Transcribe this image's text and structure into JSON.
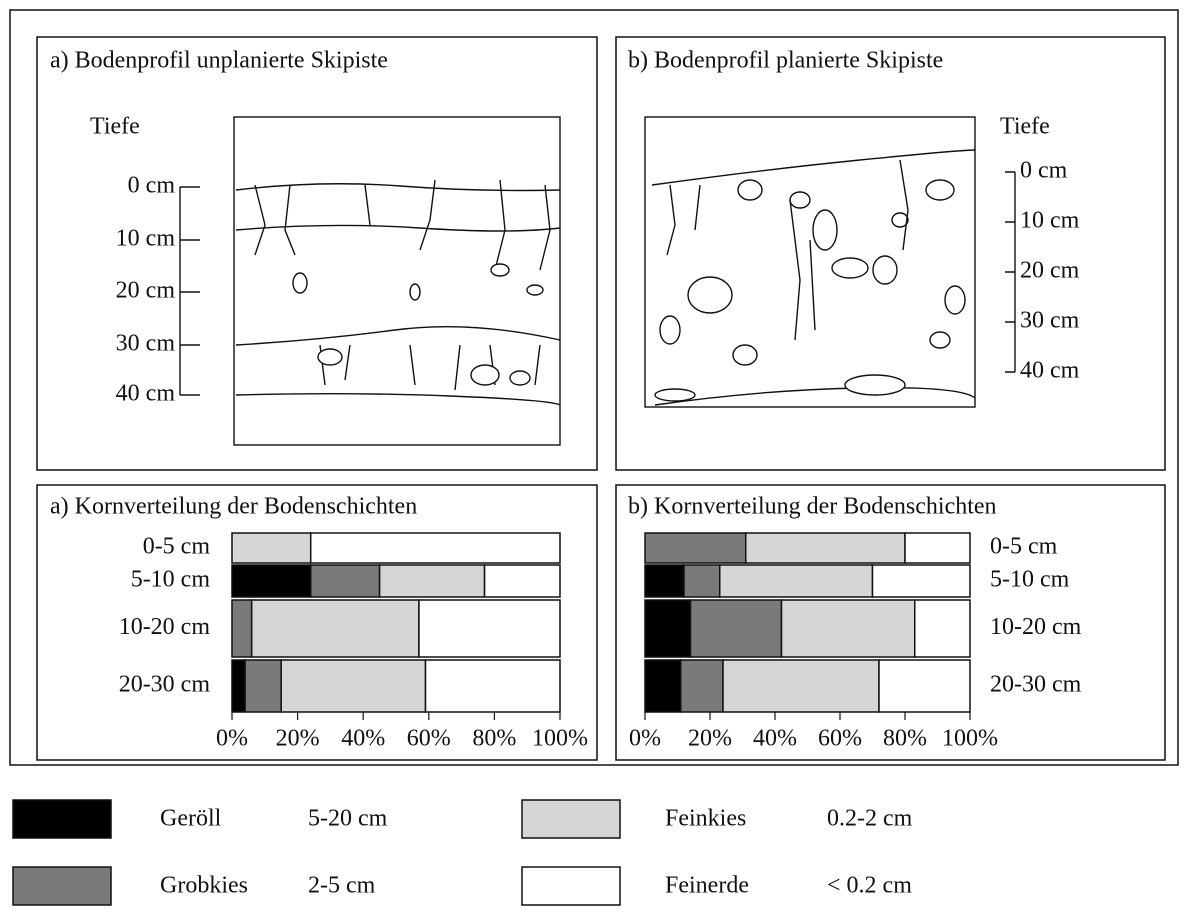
{
  "profiles": [
    {
      "title": "a) Bodenprofil unplanierte Skipiste",
      "depth_title": "Tiefe",
      "depth_labels": [
        "0 cm",
        "10 cm",
        "20 cm",
        "30 cm",
        "40 cm"
      ]
    },
    {
      "title": "b) Bodenprofil planierte Skipiste",
      "depth_title": "Tiefe",
      "depth_labels": [
        "0 cm",
        "10 cm",
        "20 cm",
        "30 cm",
        "40 cm"
      ]
    }
  ],
  "chart_data": [
    {
      "type": "bar",
      "orientation": "horizontal",
      "stacked": true,
      "title": "a) Kornverteilung der Bodenschichten",
      "categories": [
        "0-5 cm",
        "5-10 cm",
        "10-20 cm",
        "20-30 cm"
      ],
      "series": [
        {
          "name": "Geröll",
          "size": "5-20 cm",
          "color": "#000000",
          "values": [
            0,
            24,
            0,
            4
          ]
        },
        {
          "name": "Grobkies",
          "size": "2-5 cm",
          "color": "#7a7a7a",
          "values": [
            0,
            21,
            6,
            11
          ]
        },
        {
          "name": "Feinkies",
          "size": "0.2-2 cm",
          "color": "#d6d6d6",
          "values": [
            24,
            32,
            51,
            44
          ]
        },
        {
          "name": "Feinerde",
          "size": "< 0.2 cm",
          "color": "#ffffff",
          "values": [
            76,
            23,
            43,
            41
          ]
        }
      ],
      "xlim": [
        0,
        100
      ],
      "xticks": [
        {
          "value": 0,
          "label": "0%"
        },
        {
          "value": 20,
          "label": "20%"
        },
        {
          "value": 40,
          "label": "40%"
        },
        {
          "value": 60,
          "label": "60%"
        },
        {
          "value": 80,
          "label": "80%"
        },
        {
          "value": 100,
          "label": "100%"
        }
      ]
    },
    {
      "type": "bar",
      "orientation": "horizontal",
      "stacked": true,
      "title": "b) Kornverteilung der Bodenschichten",
      "categories": [
        "0-5 cm",
        "5-10 cm",
        "10-20 cm",
        "20-30 cm"
      ],
      "series": [
        {
          "color": "#000000",
          "values": [
            0,
            12,
            14,
            11
          ]
        },
        {
          "color": "#7a7a7a",
          "values": [
            31,
            11,
            28,
            13
          ]
        },
        {
          "color": "#d6d6d6",
          "values": [
            49,
            47,
            41,
            48
          ]
        },
        {
          "color": "#ffffff",
          "values": [
            20,
            30,
            17,
            28
          ]
        }
      ],
      "xlim": [
        0,
        100
      ],
      "xticks": [
        {
          "value": 0,
          "label": "0%"
        },
        {
          "value": 20,
          "label": "20%"
        },
        {
          "value": 40,
          "label": "40%"
        },
        {
          "value": 60,
          "label": "60%"
        },
        {
          "value": 80,
          "label": "80%"
        },
        {
          "value": 100,
          "label": "100%"
        }
      ]
    }
  ]
}
